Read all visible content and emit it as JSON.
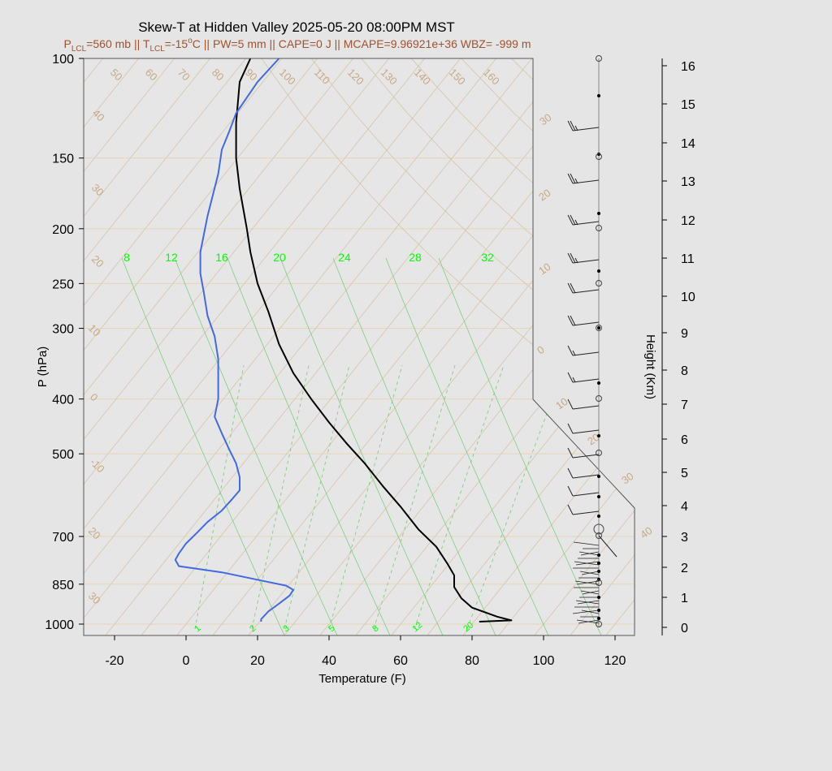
{
  "chart_data": {
    "type": "line",
    "title": "Skew-T at Hidden Valley 2025-05-20 08:00PM MST",
    "subtitle": "P_LCL=560 mb || T_LCL=-15°C || PW=5 mm || CAPE=0 J || MCAPE=9.96921e+36 WBZ= -999 m",
    "subtitle_parts": {
      "p": "P",
      "p_sub": "LCL",
      "p_val": "=560 mb || T",
      "t_sub": "LCL",
      "t_val": "=-15",
      "deg": "o",
      "rest": "C || PW=5 mm || CAPE=0 J || MCAPE=9.96921e+36 WBZ= -999 m"
    },
    "xlabel": "Temperature (F)",
    "ylabel": "P (hPa)",
    "ylabel_right": "Height (Km)",
    "xlim": [
      -28,
      126
    ],
    "ylim": [
      1050,
      100
    ],
    "xticks": [
      "-20",
      "0",
      "20",
      "40",
      "60",
      "80",
      "100",
      "120"
    ],
    "xtick_values": [
      -20,
      0,
      20,
      40,
      60,
      80,
      100,
      120
    ],
    "yticks": [
      "100",
      "150",
      "200",
      "250",
      "300",
      "400",
      "500",
      "700",
      "850",
      "1000"
    ],
    "ytick_values": [
      100,
      150,
      200,
      250,
      300,
      400,
      500,
      700,
      850,
      1000
    ],
    "height_ticks": [
      "0",
      "1",
      "2",
      "3",
      "4",
      "5",
      "6",
      "7",
      "8",
      "9",
      "10",
      "11",
      "12",
      "13",
      "14",
      "15",
      "16"
    ],
    "isotherm_labels": [
      "50",
      "60",
      "70",
      "80",
      "90",
      "100",
      "110",
      "120",
      "130",
      "140",
      "150",
      "160"
    ],
    "right_isotherm_labels": [
      "30",
      "20",
      "10",
      "0",
      "10",
      "20",
      "30",
      "40"
    ],
    "dry_adiabat_labels": [
      "40",
      "30",
      "20",
      "10",
      "0",
      "-10",
      "20",
      "30"
    ],
    "mixing_ratio_top_labels": [
      "8",
      "12",
      "16",
      "20",
      "24",
      "28",
      "32"
    ],
    "mixing_ratio_bottom_labels": [
      "1",
      "2",
      "3",
      "5",
      "8",
      "12",
      "20"
    ],
    "series": [
      {
        "name": "",
        "color": "#000000",
        "points": [
          [
            82,
            990
          ],
          [
            91,
            985
          ],
          [
            87,
            970
          ],
          [
            80,
            935
          ],
          [
            77,
            900
          ],
          [
            75,
            860
          ],
          [
            75,
            820
          ],
          [
            73,
            780
          ],
          [
            70,
            730
          ],
          [
            65,
            680
          ],
          [
            60,
            620
          ],
          [
            55,
            570
          ],
          [
            50,
            520
          ],
          [
            45,
            480
          ],
          [
            40,
            440
          ],
          [
            35,
            400
          ],
          [
            30,
            360
          ],
          [
            26,
            320
          ],
          [
            23,
            280
          ],
          [
            20,
            250
          ],
          [
            18,
            220
          ],
          [
            17,
            200
          ],
          [
            15,
            170
          ],
          [
            14,
            150
          ],
          [
            14,
            130
          ],
          [
            15,
            110
          ],
          [
            18,
            100
          ]
        ]
      },
      {
        "name": "",
        "color": "#4169e1",
        "points": [
          [
            21,
            990
          ],
          [
            21,
            980
          ],
          [
            23,
            950
          ],
          [
            26,
            920
          ],
          [
            29,
            890
          ],
          [
            30,
            870
          ],
          [
            28,
            855
          ],
          [
            22,
            840
          ],
          [
            10,
            810
          ],
          [
            -2,
            790
          ],
          [
            -3,
            770
          ],
          [
            -2,
            750
          ],
          [
            0,
            720
          ],
          [
            3,
            690
          ],
          [
            6,
            660
          ],
          [
            10,
            630
          ],
          [
            13,
            600
          ],
          [
            15,
            580
          ],
          [
            15,
            550
          ],
          [
            14,
            520
          ],
          [
            12,
            490
          ],
          [
            10,
            460
          ],
          [
            8,
            430
          ],
          [
            9,
            400
          ],
          [
            9,
            370
          ],
          [
            9,
            340
          ],
          [
            8,
            310
          ],
          [
            6,
            285
          ],
          [
            5,
            260
          ],
          [
            4,
            240
          ],
          [
            4,
            220
          ],
          [
            6,
            190
          ],
          [
            9,
            160
          ],
          [
            10,
            145
          ],
          [
            12,
            135
          ],
          [
            14,
            125
          ],
          [
            20,
            110
          ],
          [
            26,
            100
          ]
        ]
      }
    ],
    "grid": true
  }
}
